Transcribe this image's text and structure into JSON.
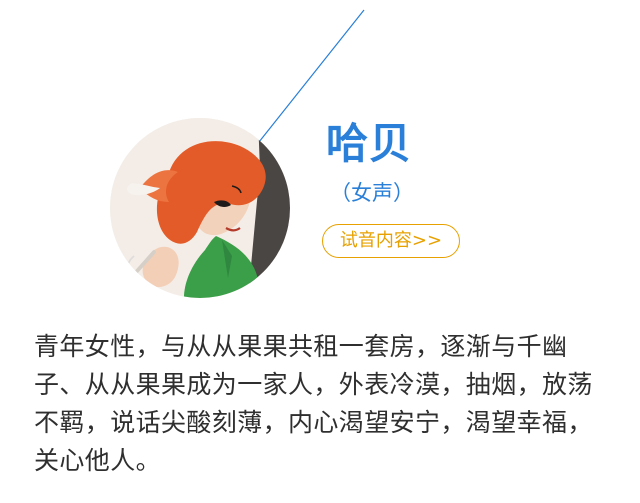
{
  "character": {
    "name": "哈贝",
    "voice_type": "（女声）",
    "try_button_label": "试音内容>>",
    "description": "青年女性，与从从果果共租一套房，逐渐与千幽子、从从果果成为一家人，外表冷漠，抽烟，放荡不羁，说话尖酸刻薄，内心渴望安宁，渴望幸福，关心他人。"
  },
  "colors": {
    "accent_blue": "#2a7fd8",
    "accent_orange": "#e7a100",
    "text_main": "#2f2f2f"
  },
  "icons": {
    "avatar_image": "character-portrait"
  }
}
